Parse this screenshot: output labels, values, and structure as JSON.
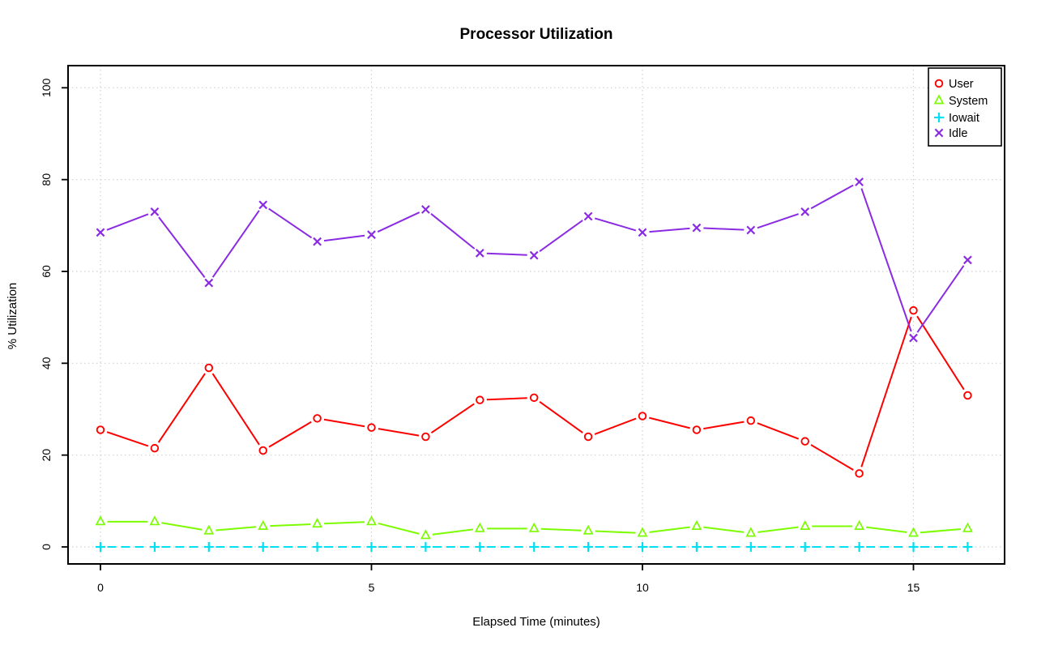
{
  "title": "Processor Utilization",
  "chart_data": {
    "type": "line",
    "title": "Processor Utilization",
    "xlabel": "Elapsed Time (minutes)",
    "ylabel": "% Utilization",
    "x": [
      0,
      1,
      2,
      3,
      4,
      5,
      6,
      7,
      8,
      9,
      10,
      11,
      12,
      13,
      14,
      15,
      16
    ],
    "xticks": [
      0,
      5,
      10,
      15
    ],
    "yticks": [
      0,
      20,
      40,
      60,
      80,
      100
    ],
    "xlim": [
      0,
      16
    ],
    "ylim": [
      0,
      100
    ],
    "grid": true,
    "grid_style": "dotted",
    "grid_color": "#d0d0d0",
    "legend_position": "topright",
    "series": [
      {
        "name": "User",
        "color": "#ff0000",
        "marker": "circle",
        "line": "solid",
        "values": [
          25.5,
          21.5,
          39,
          21,
          28,
          26,
          24,
          32,
          32.5,
          24,
          28.5,
          25.5,
          27.5,
          23,
          16,
          51.5,
          33
        ]
      },
      {
        "name": "System",
        "color": "#7cfc00",
        "marker": "triangle",
        "line": "solid",
        "values": [
          5.5,
          5.5,
          3.5,
          4.5,
          5,
          5.5,
          2.5,
          4,
          4,
          3.5,
          3,
          4.5,
          3,
          4.5,
          4.5,
          3,
          4
        ]
      },
      {
        "name": "Iowait",
        "color": "#00e0f0",
        "marker": "plus",
        "line": "dashed",
        "values": [
          0,
          0,
          0,
          0,
          0,
          0,
          0,
          0,
          0,
          0,
          0,
          0,
          0,
          0,
          0,
          0,
          0
        ]
      },
      {
        "name": "Idle",
        "color": "#8a2be2",
        "marker": "x",
        "line": "solid",
        "values": [
          68.5,
          73,
          57.5,
          74.5,
          66.5,
          68,
          73.5,
          64,
          63.5,
          72,
          68.5,
          69.5,
          69,
          73,
          79.5,
          45.5,
          62.5
        ]
      }
    ]
  }
}
